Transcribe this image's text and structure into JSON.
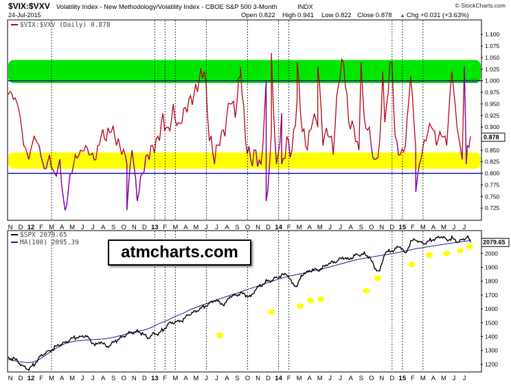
{
  "header": {
    "symbol": "$VIX:$VXV",
    "description": "Volatility Index - New Methodology/Volatility Index - CBOE S&P 500 3-Month",
    "exchange": "INDX",
    "date": "24-Jul-2015",
    "copyright": "© StockCharts.com",
    "open": "Open 0.822",
    "high": "High 0.941",
    "low": "Low 0.822",
    "close": "Close 0.878",
    "chg": "Chg +0.031 (+3.63%)",
    "chg_arrow": "▲"
  },
  "watermark": "atmcharts.com",
  "colors": {
    "ratio_line": "#b40014",
    "ratio_low_highlight": "#7b00b5",
    "green_zone": "#00e600",
    "yellow_zone": "#ffff00",
    "blue_level": "#0000aa",
    "spx_line": "#000000",
    "ma_line": "#1a1a99",
    "marker": "#ffff00"
  },
  "chart_data": [
    {
      "type": "line",
      "title": "$VIX:$VXV (Daily) 0.878",
      "legend": [
        "$VIX:$VXV (Daily) 0.878"
      ],
      "ylim": [
        0.7,
        1.13
      ],
      "yticks": [
        0.725,
        0.75,
        0.775,
        0.8,
        0.825,
        0.85,
        0.875,
        0.9,
        0.925,
        0.95,
        0.975,
        1.0,
        1.025,
        1.05,
        1.075,
        1.1
      ],
      "ytick_labels": [
        "0.725",
        "0.750",
        "0.775",
        "0.800",
        "0.825",
        "0.850",
        "0.875",
        "0.900",
        "0.925",
        "0.950",
        "0.975",
        "1.000",
        "1.025",
        "1.050",
        "1.075",
        "1.100"
      ],
      "last_value_label": "0.878",
      "zone_label": "1.000",
      "levels": [
        1.0,
        0.8
      ],
      "zones": [
        {
          "name": "green",
          "from": 0.995,
          "to": 1.045
        },
        {
          "name": "yellow",
          "from": 0.81,
          "to": 0.845
        }
      ],
      "months": [
        "N",
        "D",
        "12",
        "F",
        "M",
        "A",
        "M",
        "J",
        "J",
        "A",
        "S",
        "O",
        "N",
        "D",
        "13",
        "F",
        "M",
        "A",
        "M",
        "J",
        "J",
        "A",
        "S",
        "O",
        "N",
        "D",
        "14",
        "F",
        "M",
        "A",
        "M",
        "J",
        "J",
        "A",
        "S",
        "O",
        "N",
        "D",
        "15",
        "F",
        "M",
        "A",
        "M",
        "J",
        "J"
      ],
      "x": [
        0,
        0.5,
        1,
        1.5,
        2,
        2.5,
        3,
        3.5,
        4,
        4.5,
        5,
        5.5,
        6,
        6.5,
        7,
        7.5,
        8,
        8.5,
        9,
        9.5,
        10,
        10.5,
        11,
        11.5,
        12,
        12.5,
        13,
        13.5,
        14,
        14.5,
        15,
        15.5,
        16,
        16.5,
        17,
        17.5,
        18,
        18.5,
        19,
        19.5,
        20,
        20.5,
        21,
        21.5,
        22,
        22.5,
        23,
        23.5,
        24,
        24.5,
        25,
        25.5,
        26,
        26.5,
        27,
        27.5,
        28,
        28.5,
        29,
        29.5,
        30,
        30.5,
        31,
        31.5,
        32,
        32.5,
        33,
        33.5,
        34,
        34.5,
        35,
        35.5,
        36,
        36.5,
        37,
        37.5,
        38,
        38.5,
        39,
        39.5,
        40,
        40.5,
        41,
        41.5,
        42,
        42.5,
        43,
        43.5,
        44,
        44.5,
        44.8
      ],
      "values": [
        0.97,
        0.96,
        0.94,
        0.86,
        0.83,
        0.88,
        0.86,
        0.81,
        0.84,
        0.8,
        0.83,
        0.72,
        0.8,
        0.84,
        0.85,
        0.86,
        0.84,
        0.83,
        0.88,
        0.87,
        0.89,
        0.86,
        0.84,
        0.82,
        0.85,
        0.74,
        0.8,
        0.84,
        0.86,
        0.88,
        0.93,
        0.9,
        0.95,
        0.91,
        0.94,
        0.96,
        0.97,
        1.0,
        1.02,
        0.87,
        0.82,
        0.86,
        0.88,
        0.95,
        0.92,
        1.01,
        0.87,
        0.83,
        0.85,
        0.82,
        1.0,
        0.89,
        0.82,
        0.93,
        0.88,
        0.85,
        0.96,
        0.89,
        0.85,
        0.91,
        0.9,
        0.86,
        0.88,
        0.84,
        0.99,
        1.04,
        0.91,
        0.9,
        0.85,
        0.92,
        0.9,
        0.83,
        0.87,
        0.91,
        1.04,
        0.88,
        0.84,
        0.86,
        1.01,
        0.85,
        0.83,
        0.87,
        0.9,
        0.86,
        0.88,
        0.86,
        1.02,
        0.9,
        0.83,
        0.86,
        0.88
      ],
      "spikes": [
        [
          11.5,
          0.72
        ],
        [
          25,
          0.74
        ],
        [
          22.5,
          1.03
        ],
        [
          25.5,
          1.06
        ],
        [
          26.5,
          0.82
        ],
        [
          28,
          1.04
        ],
        [
          30,
          1.03
        ],
        [
          34.2,
          1.04
        ],
        [
          36.3,
          1.02
        ],
        [
          37.2,
          1.04
        ],
        [
          39.5,
          0.76
        ],
        [
          44.2,
          1.03
        ],
        [
          44.4,
          0.82
        ]
      ]
    },
    {
      "type": "line",
      "legend": [
        "$SPX 2079.65",
        "MA(100) 2095.39"
      ],
      "series_names": [
        "$SPX",
        "MA(100)"
      ],
      "ylim": [
        1150,
        2160
      ],
      "yticks": [
        1200,
        1300,
        1400,
        1500,
        1600,
        1700,
        1800,
        1900,
        2000
      ],
      "ytick_labels": [
        "1200",
        "1300",
        "1400",
        "1500",
        "1600",
        "1700",
        "1800",
        "1900",
        "2000"
      ],
      "last_value_label": "2079.65",
      "x": [
        0,
        0.5,
        1,
        1.5,
        2,
        2.5,
        3,
        3.5,
        4,
        4.5,
        5,
        5.5,
        6,
        6.5,
        7,
        7.5,
        8,
        8.5,
        9,
        9.5,
        10,
        10.5,
        11,
        11.5,
        12,
        12.5,
        13,
        13.5,
        14,
        14.5,
        15,
        15.5,
        16,
        16.5,
        17,
        17.5,
        18,
        18.5,
        19,
        19.5,
        20,
        20.5,
        21,
        21.5,
        22,
        22.5,
        23,
        23.5,
        24,
        24.5,
        25,
        25.5,
        26,
        26.5,
        27,
        27.5,
        28,
        28.5,
        29,
        29.5,
        30,
        30.5,
        31,
        31.5,
        32,
        32.5,
        33,
        33.5,
        34,
        34.5,
        35,
        35.5,
        36,
        36.5,
        37,
        37.5,
        38,
        38.5,
        39,
        39.5,
        40,
        40.5,
        41,
        41.5,
        42,
        42.5,
        43,
        43.5,
        44,
        44.5,
        44.8
      ],
      "spx": [
        1250,
        1240,
        1215,
        1185,
        1160,
        1200,
        1250,
        1275,
        1300,
        1320,
        1340,
        1360,
        1375,
        1395,
        1400,
        1405,
        1370,
        1340,
        1360,
        1330,
        1345,
        1370,
        1400,
        1415,
        1430,
        1440,
        1420,
        1390,
        1420,
        1415,
        1450,
        1490,
        1500,
        1515,
        1520,
        1560,
        1580,
        1590,
        1620,
        1640,
        1660,
        1650,
        1630,
        1690,
        1700,
        1710,
        1700,
        1690,
        1740,
        1770,
        1800,
        1800,
        1830,
        1840,
        1850,
        1790,
        1760,
        1850,
        1870,
        1880,
        1880,
        1900,
        1920,
        1940,
        1950,
        1970,
        1960,
        1980,
        1990,
        2000,
        1970,
        1900,
        1870,
        2000,
        2020,
        2030,
        2050,
        2000,
        2080,
        2100,
        2080,
        2070,
        2100,
        2110,
        2120,
        2100,
        2110,
        2080,
        2100,
        2120,
        2080
      ],
      "ma100": [
        1235,
        1228,
        1220,
        1215,
        1212,
        1220,
        1235,
        1260,
        1285,
        1310,
        1330,
        1350,
        1360,
        1368,
        1372,
        1375,
        1378,
        1380,
        1382,
        1385,
        1392,
        1400,
        1410,
        1420,
        1430,
        1438,
        1445,
        1455,
        1470,
        1490,
        1505,
        1520,
        1540,
        1555,
        1570,
        1590,
        1605,
        1618,
        1632,
        1645,
        1660,
        1673,
        1685,
        1697,
        1710,
        1722,
        1735,
        1748,
        1760,
        1772,
        1785,
        1798,
        1810,
        1822,
        1832,
        1840,
        1848,
        1856,
        1865,
        1874,
        1882,
        1890,
        1900,
        1910,
        1920,
        1930,
        1940,
        1950,
        1958,
        1965,
        1972,
        1978,
        1984,
        1990,
        1996,
        2002,
        2010,
        2018,
        2026,
        2034,
        2040,
        2046,
        2052,
        2058,
        2064,
        2070,
        2075,
        2080,
        2085,
        2090,
        2095.39
      ],
      "markers": [
        [
          21.5,
          1410
        ],
        [
          26.5,
          1580
        ],
        [
          29.3,
          1620
        ],
        [
          30.3,
          1660
        ],
        [
          31.3,
          1670
        ],
        [
          35.7,
          1730
        ],
        [
          36.8,
          1820
        ],
        [
          40.1,
          1920
        ],
        [
          41.8,
          1990
        ],
        [
          43.5,
          2000
        ],
        [
          44.8,
          2020
        ],
        [
          45.7,
          2050
        ]
      ]
    }
  ]
}
